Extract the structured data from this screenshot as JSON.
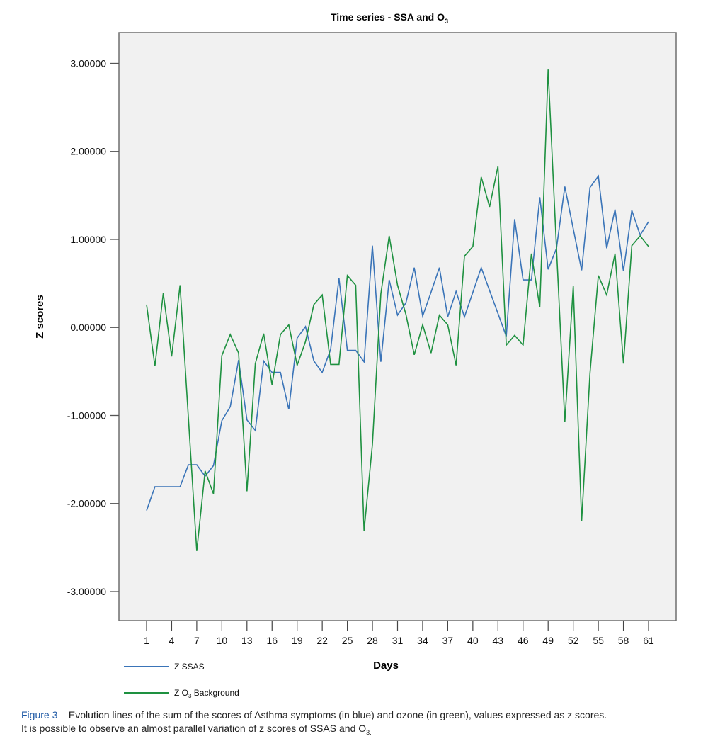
{
  "chart_data": {
    "type": "line",
    "title": "Time series - SSA and O",
    "title_subscript": "3",
    "xlabel": "Days",
    "ylabel": "Z scores",
    "x": [
      1,
      2,
      3,
      4,
      5,
      6,
      7,
      8,
      9,
      10,
      11,
      12,
      13,
      14,
      15,
      16,
      17,
      18,
      19,
      20,
      21,
      22,
      23,
      24,
      25,
      26,
      27,
      28,
      29,
      30,
      31,
      32,
      33,
      34,
      35,
      36,
      37,
      38,
      39,
      40,
      41,
      42,
      43,
      44,
      45,
      46,
      47,
      48,
      49,
      50,
      51,
      52,
      53,
      54,
      55,
      56,
      57,
      58,
      59,
      60,
      61
    ],
    "xticks": [
      "1",
      "4",
      "7",
      "10",
      "13",
      "16",
      "19",
      "22",
      "25",
      "28",
      "31",
      "34",
      "37",
      "40",
      "43",
      "46",
      "49",
      "52",
      "55",
      "58",
      "61"
    ],
    "xtick_values": [
      1,
      4,
      7,
      10,
      13,
      16,
      19,
      22,
      25,
      28,
      31,
      34,
      37,
      40,
      43,
      46,
      49,
      52,
      55,
      58,
      61
    ],
    "xlim": [
      -2.3,
      64.3
    ],
    "ylim": [
      -3.33,
      3.35
    ],
    "yticks": [
      3,
      2,
      1,
      0,
      -1,
      -2,
      -3
    ],
    "ytick_labels": [
      "3.00000",
      "2.00000",
      "1.00000",
      "0.00000",
      "-1.00000",
      "-2.00000",
      "-3.00000"
    ],
    "grid": false,
    "legend_position": "bottom-left",
    "series": [
      {
        "name": "Z SSAS",
        "name_prefix": "Z SSAS",
        "name_sub": "",
        "name_suffix": "",
        "color": "#3a74b8",
        "values": [
          -2.08,
          -1.81,
          -1.81,
          -1.81,
          -1.81,
          -1.56,
          -1.56,
          -1.69,
          -1.57,
          -1.06,
          -0.9,
          -0.37,
          -1.05,
          -1.17,
          -0.38,
          -0.51,
          -0.51,
          -0.93,
          -0.12,
          0.01,
          -0.38,
          -0.51,
          -0.25,
          0.56,
          -0.26,
          -0.26,
          -0.39,
          0.93,
          -0.39,
          0.54,
          0.14,
          0.28,
          0.68,
          0.13,
          0.4,
          0.68,
          0.12,
          0.41,
          0.12,
          0.4,
          0.68,
          0.42,
          0.16,
          -0.1,
          1.23,
          0.54,
          0.54,
          1.48,
          0.66,
          0.9,
          1.6,
          1.12,
          0.65,
          1.59,
          1.72,
          0.9,
          1.34,
          0.64,
          1.33,
          1.05,
          1.2
        ]
      },
      {
        "name": "Z O3 Background",
        "name_prefix": "Z O",
        "name_sub": "3",
        "name_suffix": " Background",
        "color": "#1e9140",
        "values": [
          0.26,
          -0.44,
          0.39,
          -0.33,
          0.48,
          -1.03,
          -2.54,
          -1.63,
          -1.89,
          -0.32,
          -0.08,
          -0.29,
          -1.86,
          -0.41,
          -0.07,
          -0.65,
          -0.08,
          0.03,
          -0.43,
          -0.16,
          0.26,
          0.37,
          -0.42,
          -0.42,
          0.59,
          0.48,
          -2.31,
          -1.33,
          0.38,
          1.04,
          0.48,
          0.15,
          -0.31,
          0.03,
          -0.29,
          0.14,
          0.03,
          -0.43,
          0.81,
          0.92,
          1.71,
          1.37,
          1.83,
          -0.2,
          -0.09,
          -0.2,
          0.84,
          0.23,
          2.93,
          0.9,
          -1.07,
          0.47,
          -2.2,
          -0.52,
          0.59,
          0.37,
          0.84,
          -0.41,
          0.93,
          1.04,
          0.92
        ]
      }
    ]
  },
  "caption": {
    "figure_label": "Figure 3",
    "line1": " – Evolution lines of the sum of the scores of Asthma symptoms (in blue) and ozone (in green), values expressed as z scores.",
    "line2": "It is possible to observe an almost parallel variation of z scores of SSAS and O",
    "line2_sub": "3."
  },
  "colors": {
    "plot_background": "#f1f1f1",
    "frame": "#6e6e6e",
    "figure_label": "#1f5aa6"
  }
}
